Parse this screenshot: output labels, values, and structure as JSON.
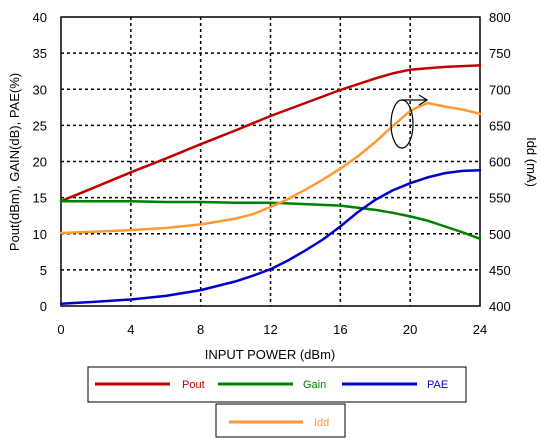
{
  "chart_data": {
    "type": "line",
    "title": "",
    "xlabel": "INPUT POWER (dBm)",
    "ylabel_left": "Pout(dBm), GAIN(dB), PAE(%)",
    "ylabel_right": "Idd (mA)",
    "xlim": [
      0,
      24
    ],
    "ylim_left": [
      0,
      40
    ],
    "ylim_right": [
      400,
      800
    ],
    "x_ticks": [
      0,
      4,
      8,
      12,
      16,
      20,
      24
    ],
    "y_left_ticks": [
      0,
      5,
      10,
      15,
      20,
      25,
      30,
      35,
      40
    ],
    "y_right_ticks": [
      400,
      450,
      500,
      550,
      600,
      650,
      700,
      750,
      800
    ],
    "grid": true,
    "legend": [
      {
        "name": "Pout",
        "color": "#c00000"
      },
      {
        "name": "Gain",
        "color": "#008000"
      },
      {
        "name": "PAE",
        "color": "#0000cc"
      },
      {
        "name": "Idd",
        "color": "#ff9933"
      }
    ],
    "series": [
      {
        "name": "Pout",
        "color": "#c00000",
        "axis": "left",
        "x": [
          0,
          2,
          4,
          6,
          8,
          10,
          12,
          14,
          16,
          18,
          19,
          20,
          21,
          22,
          23,
          24
        ],
        "y": [
          14.5,
          16.5,
          18.5,
          20.4,
          22.4,
          24.3,
          26.3,
          28.1,
          29.9,
          31.5,
          32.2,
          32.7,
          32.9,
          33.1,
          33.2,
          33.3
        ]
      },
      {
        "name": "Gain",
        "color": "#008000",
        "axis": "left",
        "x": [
          0,
          2,
          4,
          6,
          8,
          10,
          12,
          14,
          16,
          17,
          18,
          19,
          20,
          21,
          22,
          23,
          24
        ],
        "y": [
          14.5,
          14.5,
          14.5,
          14.4,
          14.4,
          14.3,
          14.3,
          14.1,
          13.9,
          13.6,
          13.3,
          12.9,
          12.4,
          11.8,
          11.0,
          10.2,
          9.3
        ]
      },
      {
        "name": "PAE",
        "color": "#0000cc",
        "axis": "left",
        "x": [
          0,
          2,
          4,
          6,
          8,
          10,
          11,
          12,
          13,
          14,
          15,
          16,
          17,
          18,
          19,
          20,
          21,
          22,
          23,
          24
        ],
        "y": [
          0.3,
          0.6,
          0.9,
          1.4,
          2.2,
          3.4,
          4.2,
          5.1,
          6.3,
          7.7,
          9.2,
          11.0,
          13.0,
          14.7,
          16.0,
          17.0,
          17.8,
          18.4,
          18.7,
          18.8
        ]
      },
      {
        "name": "Idd",
        "color": "#ff9933",
        "axis": "right",
        "x": [
          0,
          2,
          4,
          6,
          8,
          10,
          11,
          12,
          13,
          14,
          15,
          16,
          17,
          18,
          19,
          20,
          20.5,
          21,
          22,
          23,
          24
        ],
        "y": [
          501,
          503,
          505,
          508,
          513,
          521,
          527,
          537,
          548,
          561,
          575,
          590,
          607,
          627,
          649,
          670,
          676,
          681,
          676,
          672,
          666
        ]
      }
    ]
  }
}
